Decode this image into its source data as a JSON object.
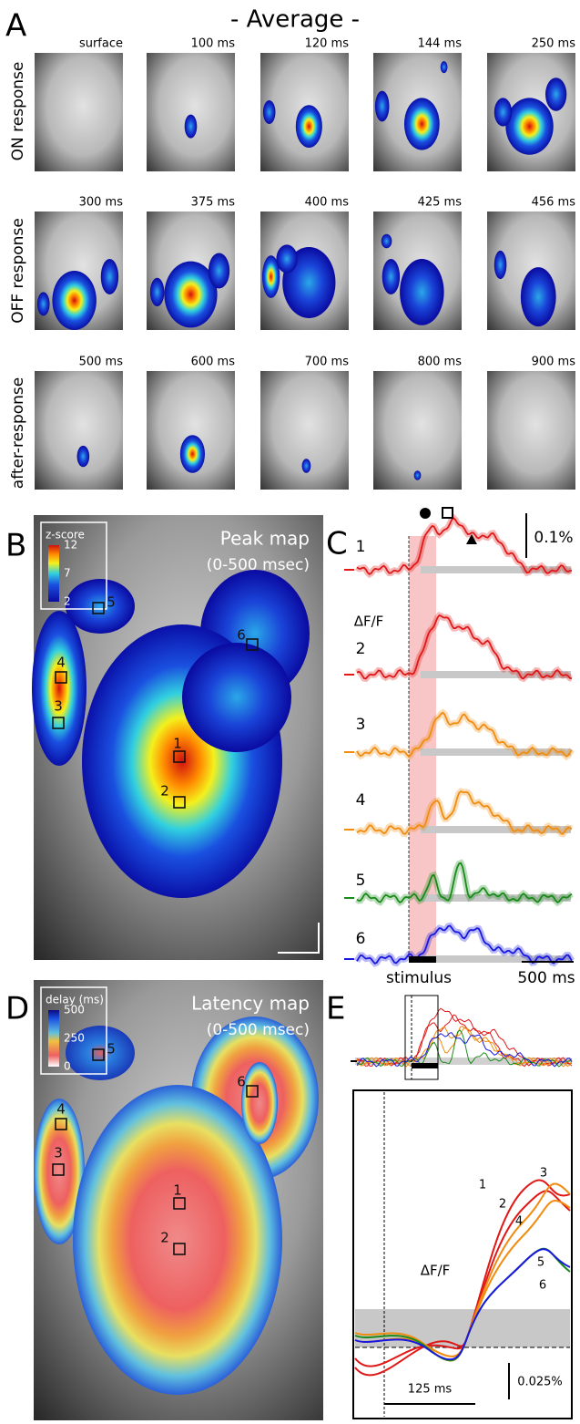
{
  "panel_labels": [
    "A",
    "B",
    "C",
    "D",
    "E"
  ],
  "panel_a": {
    "title": "- Average -",
    "rows": [
      {
        "label": "ON response",
        "frames": [
          "surface",
          "100 ms",
          "120 ms",
          "144 ms",
          "250 ms"
        ]
      },
      {
        "label": "OFF response",
        "frames": [
          "300 ms",
          "375 ms",
          "400 ms",
          "425 ms",
          "456 ms"
        ]
      },
      {
        "label": "after-response",
        "frames": [
          "500 ms",
          "600 ms",
          "700 ms",
          "800 ms",
          "900 ms"
        ]
      }
    ]
  },
  "panel_b": {
    "title": "Peak map",
    "subtitle": "(0-500 msec)",
    "colorbar": {
      "label": "z-score",
      "ticks": [
        "12",
        "7",
        "2"
      ]
    },
    "rois": [
      "1",
      "2",
      "3",
      "4",
      "5",
      "6"
    ]
  },
  "panel_c": {
    "scale_y": "0.1%",
    "y_label": "ΔF/F",
    "traces": [
      "1",
      "2",
      "3",
      "4",
      "5",
      "6"
    ],
    "stimulus": "stimulus",
    "scale_x": "500 ms"
  },
  "panel_d": {
    "title": "Latency map",
    "subtitle": "(0-500 msec)",
    "colorbar": {
      "label": "delay (ms)",
      "ticks": [
        "500",
        "250",
        "0"
      ]
    },
    "rois": [
      "1",
      "2",
      "3",
      "4",
      "5",
      "6"
    ]
  },
  "panel_e": {
    "y_label": "ΔF/F",
    "traces": [
      "1",
      "2",
      "3",
      "4",
      "5",
      "6"
    ],
    "scale_x": "125 ms",
    "scale_y": "0.025%"
  }
}
